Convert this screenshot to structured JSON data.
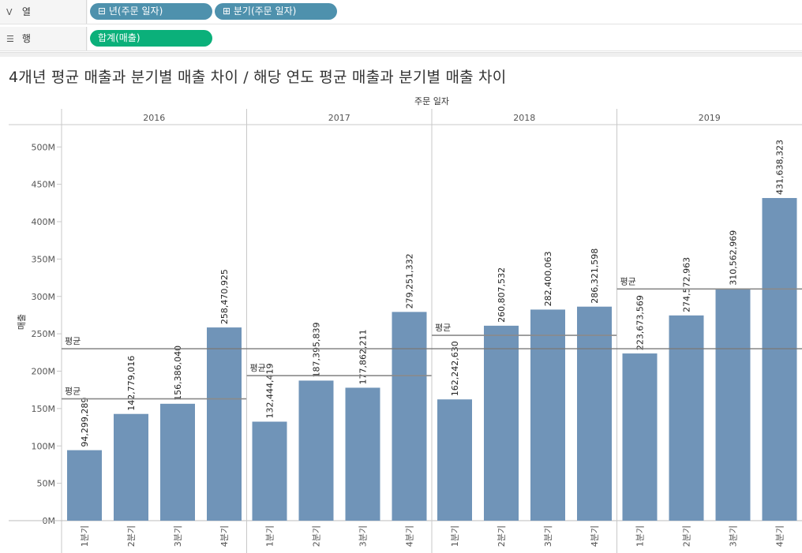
{
  "shelves": {
    "columns": {
      "label": "열",
      "icon": "columns-icon",
      "pills": [
        {
          "label": "⊟ 년(주문 일자)"
        },
        {
          "label": "⊞ 분기(주문 일자)"
        }
      ]
    },
    "rows": {
      "label": "행",
      "icon": "rows-icon",
      "pills": [
        {
          "label": "합계(매출)"
        }
      ]
    }
  },
  "view": {
    "title": "4개년 평균 매출과 분기별 매출 차이 / 해당 연도 평균 매출과 분기별 매출 차이"
  },
  "chart_data": {
    "type": "bar",
    "title": "4개년 평균 매출과 분기별 매출 차이 / 해당 연도 평균 매출과 분기별 매출 차이",
    "column_header": "주문 일자",
    "ylabel": "매출",
    "ylim": [
      0,
      530000000
    ],
    "yticks": [
      0,
      50000000,
      100000000,
      150000000,
      200000000,
      250000000,
      300000000,
      350000000,
      400000000,
      450000000,
      500000000
    ],
    "ytick_labels": [
      "0M",
      "50M",
      "100M",
      "150M",
      "200M",
      "250M",
      "300M",
      "350M",
      "400M",
      "450M",
      "500M"
    ],
    "reference_label": "평균",
    "bar_color": "#7094b8",
    "overall_average": 230000000,
    "years": [
      {
        "year": "2016",
        "average": 163000000,
        "quarters": [
          {
            "label": "1분기",
            "value": 94299289,
            "value_label": "94,299,289"
          },
          {
            "label": "2분기",
            "value": 142779016,
            "value_label": "142,779,016"
          },
          {
            "label": "3분기",
            "value": 156386040,
            "value_label": "156,386,040"
          },
          {
            "label": "4분기",
            "value": 258470925,
            "value_label": "258,470,925"
          }
        ]
      },
      {
        "year": "2017",
        "average": 194000000,
        "quarters": [
          {
            "label": "1분기",
            "value": 132444419,
            "value_label": "132,444,419"
          },
          {
            "label": "2분기",
            "value": 187395839,
            "value_label": "187,395,839"
          },
          {
            "label": "3분기",
            "value": 177862211,
            "value_label": "177,862,211"
          },
          {
            "label": "4분기",
            "value": 279251332,
            "value_label": "279,251,332"
          }
        ]
      },
      {
        "year": "2018",
        "average": 248000000,
        "quarters": [
          {
            "label": "1분기",
            "value": 162242630,
            "value_label": "162,242,630"
          },
          {
            "label": "2분기",
            "value": 260807532,
            "value_label": "260,807,532"
          },
          {
            "label": "3분기",
            "value": 282400063,
            "value_label": "282,400,063"
          },
          {
            "label": "4분기",
            "value": 286321598,
            "value_label": "286,321,598"
          }
        ]
      },
      {
        "year": "2019",
        "average": 310000000,
        "quarters": [
          {
            "label": "1분기",
            "value": 223673569,
            "value_label": "223,673,569"
          },
          {
            "label": "2분기",
            "value": 274572963,
            "value_label": "274,572,963"
          },
          {
            "label": "3분기",
            "value": 310562969,
            "value_label": "310,562,969"
          },
          {
            "label": "4분기",
            "value": 431638323,
            "value_label": "431,638,323"
          }
        ]
      }
    ]
  }
}
